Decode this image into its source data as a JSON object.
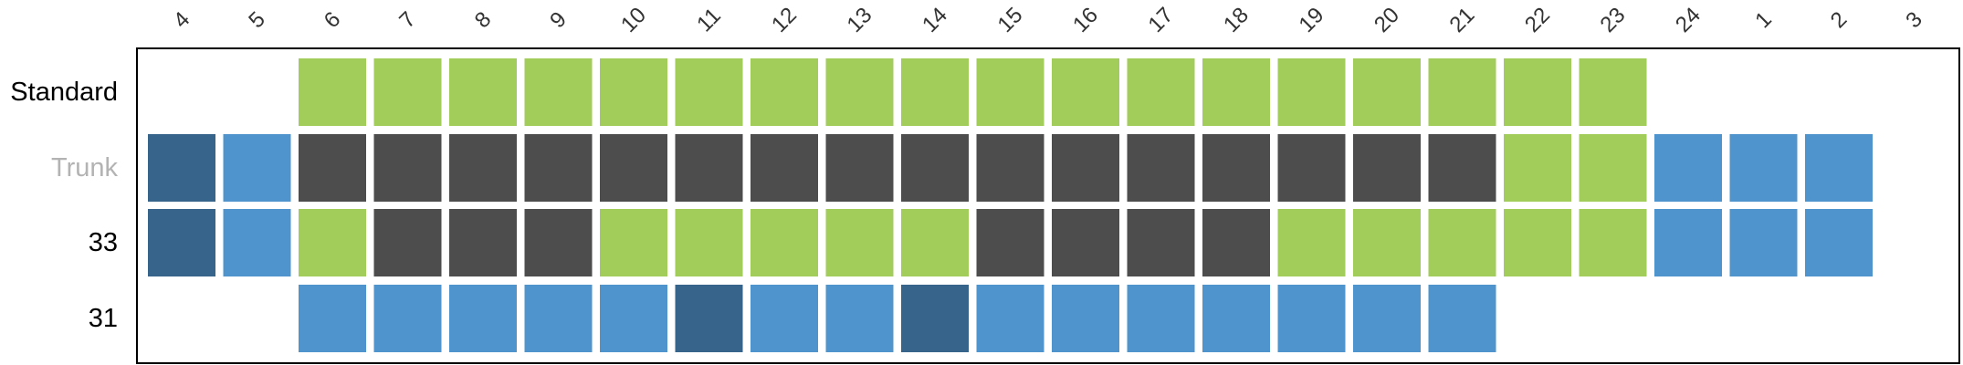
{
  "chart_data": {
    "type": "heatmap",
    "title": "",
    "xlabel": "",
    "ylabel": "",
    "columns": [
      "4",
      "5",
      "6",
      "7",
      "8",
      "9",
      "10",
      "11",
      "12",
      "13",
      "14",
      "15",
      "16",
      "17",
      "18",
      "19",
      "20",
      "21",
      "22",
      "23",
      "24",
      "1",
      "2",
      "3"
    ],
    "rows": [
      {
        "label": "Standard",
        "label_color": "#000000",
        "cells": [
          "",
          "",
          "g",
          "g",
          "g",
          "g",
          "g",
          "g",
          "g",
          "g",
          "g",
          "g",
          "g",
          "g",
          "g",
          "g",
          "g",
          "g",
          "g",
          "g",
          "",
          "",
          "",
          ""
        ]
      },
      {
        "label": "Trunk",
        "label_color": "#b3b3b3",
        "cells": [
          "d",
          "b",
          "k",
          "k",
          "k",
          "k",
          "k",
          "k",
          "k",
          "k",
          "k",
          "k",
          "k",
          "k",
          "k",
          "k",
          "k",
          "k",
          "g",
          "g",
          "b",
          "b",
          "b",
          ""
        ]
      },
      {
        "label": "33",
        "label_color": "#000000",
        "cells": [
          "d",
          "b",
          "g",
          "k",
          "k",
          "k",
          "g",
          "g",
          "g",
          "g",
          "g",
          "k",
          "k",
          "k",
          "k",
          "g",
          "g",
          "g",
          "g",
          "g",
          "b",
          "b",
          "b",
          ""
        ]
      },
      {
        "label": "31",
        "label_color": "#000000",
        "cells": [
          "",
          "",
          "b",
          "b",
          "b",
          "b",
          "b",
          "d",
          "b",
          "b",
          "d",
          "b",
          "b",
          "b",
          "b",
          "b",
          "b",
          "b",
          "",
          "",
          "",
          "",
          "",
          ""
        ]
      }
    ],
    "palette": {
      "g": "#a2cd5a",
      "k": "#4d4d4d",
      "b": "#4f94cd",
      "d": "#36648b"
    },
    "grid": false,
    "legend": "none"
  }
}
